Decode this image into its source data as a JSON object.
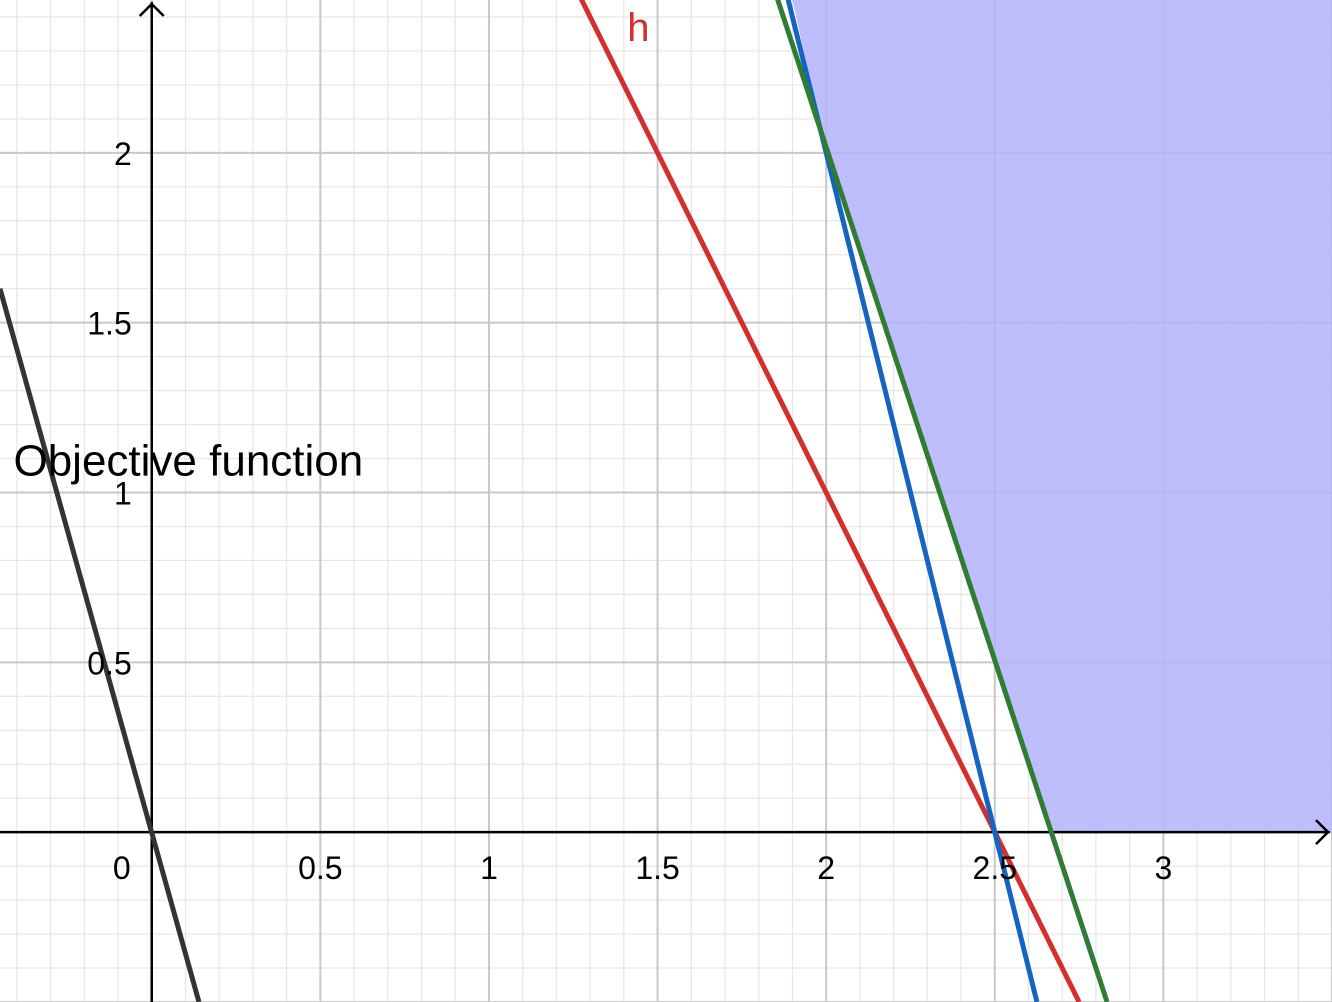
{
  "chart_data": {
    "type": "line",
    "title": "",
    "xlabel": "",
    "ylabel": "",
    "xlim": [
      -0.45,
      3.5
    ],
    "ylim": [
      -0.5,
      2.45
    ],
    "grid": {
      "major": 0.5,
      "minor": 0.1
    },
    "x_ticks": [
      {
        "value": 0,
        "label": "0"
      },
      {
        "value": 0.5,
        "label": "0.5"
      },
      {
        "value": 1,
        "label": "1"
      },
      {
        "value": 1.5,
        "label": "1.5"
      },
      {
        "value": 2,
        "label": "2"
      },
      {
        "value": 2.5,
        "label": "2.5"
      },
      {
        "value": 3,
        "label": "3"
      }
    ],
    "y_ticks": [
      {
        "value": 0.5,
        "label": "0.5"
      },
      {
        "value": 1,
        "label": "1"
      },
      {
        "value": 1.5,
        "label": "1.5"
      },
      {
        "value": 2,
        "label": "2"
      }
    ],
    "feasible_region": {
      "color": "#b3b3fb",
      "opacity": 0.85,
      "boundary": [
        [
          1.9,
          2.45
        ],
        [
          2.0,
          2.0
        ],
        [
          2.5,
          0.5
        ],
        [
          2.667,
          0
        ],
        [
          3.5,
          0
        ],
        [
          3.5,
          2.45
        ]
      ]
    },
    "series": [
      {
        "name": "h",
        "color": "#d32f2f",
        "x": [
          1.225,
          2.75
        ],
        "y": [
          2.55,
          -0.5
        ]
      },
      {
        "name": "",
        "color": "#1565c0",
        "x": [
          1.87,
          2.625
        ],
        "y": [
          2.52,
          -0.5
        ]
      },
      {
        "name": "",
        "color": "#2e7d32",
        "x": [
          1.84,
          2.833
        ],
        "y": [
          2.5,
          -0.5
        ]
      },
      {
        "name": "",
        "color": "#333333",
        "x": [
          -0.45,
          0.14
        ],
        "y": [
          1.6,
          -0.5
        ]
      }
    ],
    "annotations": [
      {
        "text": "h",
        "x": 1.41,
        "y": 2.33,
        "color": "#d32f2f"
      },
      {
        "text": "Objective function",
        "x": -0.41,
        "y": 1.05,
        "color": "#000000"
      }
    ]
  }
}
